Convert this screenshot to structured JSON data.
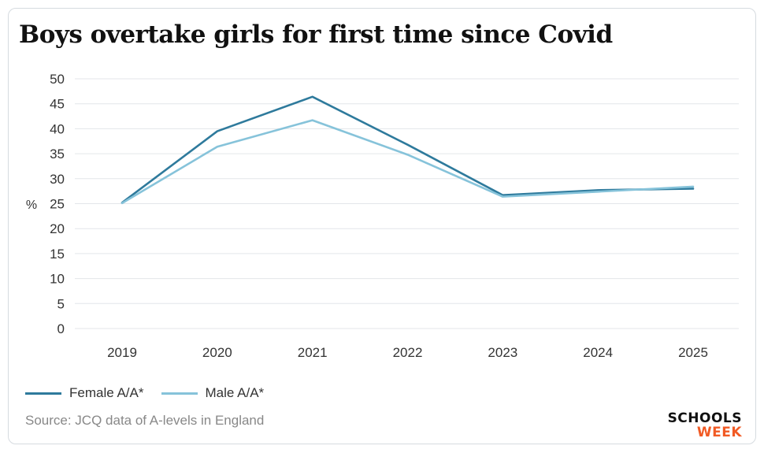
{
  "title": "Boys overtake girls for first time since Covid",
  "source": "Source: JCQ data of A-levels in England",
  "logo": {
    "line1": "SCHOOLS",
    "line2": "WEEK"
  },
  "colors": {
    "female": "#2e7a9c",
    "male": "#86c3da",
    "grid": "#e3e6ea",
    "logo_accent": "#f15a24"
  },
  "chart_data": {
    "type": "line",
    "title": "Boys overtake girls for first time since Covid",
    "ylabel": "%",
    "xlabel": "",
    "x": [
      "2019",
      "2020",
      "2021",
      "2022",
      "2023",
      "2024",
      "2025"
    ],
    "ylim": [
      0,
      50
    ],
    "yticks": [
      0,
      5,
      10,
      15,
      20,
      25,
      30,
      35,
      40,
      45,
      50
    ],
    "grid": true,
    "legend_position": "bottom-left",
    "series": [
      {
        "name": "Female A/A*",
        "values": [
          25.2,
          39.5,
          46.4,
          36.8,
          26.7,
          27.7,
          28.0
        ]
      },
      {
        "name": "Male A/A*",
        "values": [
          25.1,
          36.4,
          41.7,
          34.8,
          26.4,
          27.4,
          28.4
        ]
      }
    ]
  }
}
